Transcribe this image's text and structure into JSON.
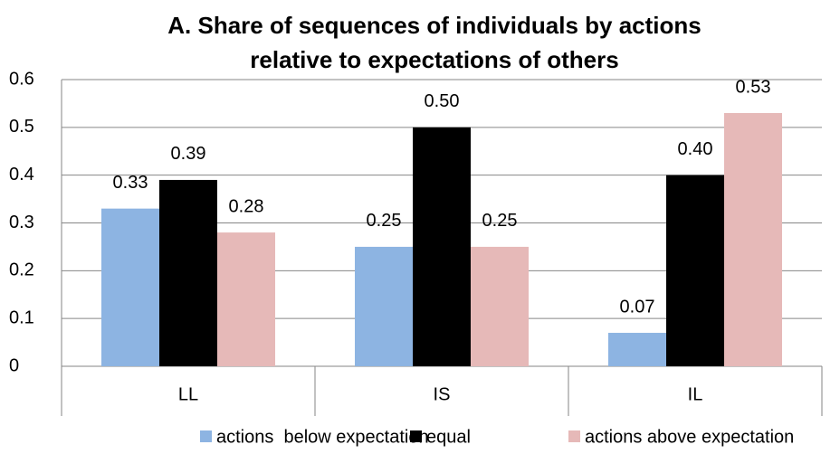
{
  "chart_data": {
    "type": "bar",
    "title": [
      "A. Share of sequences of individuals by actions",
      "relative to expectations of others"
    ],
    "categories": [
      "LL",
      "IS",
      "IL"
    ],
    "series": [
      {
        "name": "actions  below expectation",
        "color": "#8db4e2",
        "values": [
          0.33,
          0.25,
          0.07
        ],
        "value_labels": [
          "0.33",
          "0.25",
          "0.07"
        ]
      },
      {
        "name": "equal",
        "color": "#000000",
        "values": [
          0.39,
          0.5,
          0.4
        ],
        "value_labels": [
          "0.39",
          "0.50",
          "0.40"
        ]
      },
      {
        "name": "actions above expectation",
        "color": "#e6b9b8",
        "values": [
          0.28,
          0.25,
          0.53
        ],
        "value_labels": [
          "0.28",
          "0.25",
          "0.53"
        ]
      }
    ],
    "ylim": [
      0,
      0.6
    ],
    "yticks": [
      0,
      0.1,
      0.2,
      0.3,
      0.4,
      0.5,
      0.6
    ],
    "grid": true
  }
}
